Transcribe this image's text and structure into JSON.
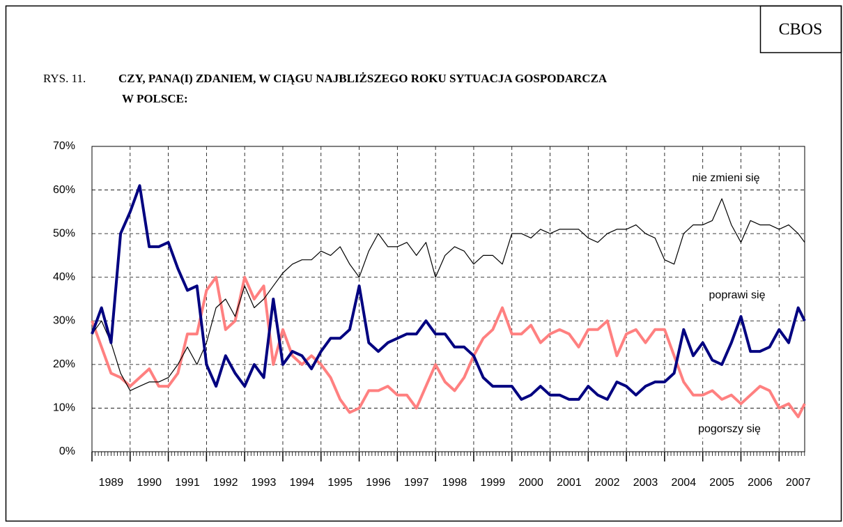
{
  "chart_data": {
    "type": "line",
    "badge": "CBOS",
    "figure_label": "RYS. 11.",
    "title": "CZY, PANA(I) ZDANIEM, W CIĄGU NAJBLIŻSZEGO ROKU SYTUACJA GOSPODARCZA",
    "title_line2": "W POLSCE:",
    "x": [
      1989,
      1989.25,
      1989.5,
      1989.75,
      1990,
      1990.25,
      1990.5,
      1990.75,
      1991,
      1991.25,
      1991.5,
      1991.75,
      1992,
      1992.25,
      1992.5,
      1992.75,
      1993,
      1993.25,
      1993.5,
      1993.75,
      1994,
      1994.25,
      1994.5,
      1994.75,
      1995,
      1995.25,
      1995.5,
      1995.75,
      1996,
      1996.25,
      1996.5,
      1996.75,
      1997,
      1997.25,
      1997.5,
      1997.75,
      1998,
      1998.25,
      1998.5,
      1998.75,
      1999,
      1999.25,
      1999.5,
      1999.75,
      2000,
      2000.25,
      2000.5,
      2000.75,
      2001,
      2001.25,
      2001.5,
      2001.75,
      2002,
      2002.25,
      2002.5,
      2002.75,
      2003,
      2003.25,
      2003.5,
      2003.75,
      2004,
      2004.25,
      2004.5,
      2004.75,
      2005,
      2005.25,
      2005.5,
      2005.75,
      2006,
      2006.25,
      2006.5,
      2006.75,
      2007,
      2007.25,
      2007.5,
      2007.67
    ],
    "series": [
      {
        "name": "nie zmieni się",
        "color": "#000000",
        "values": [
          27,
          30,
          25,
          18,
          14,
          15,
          16,
          16,
          17,
          20,
          24,
          20,
          25,
          33,
          35,
          31,
          38,
          33,
          35,
          38,
          41,
          43,
          44,
          44,
          46,
          45,
          47,
          43,
          40,
          46,
          50,
          47,
          47,
          48,
          45,
          48,
          40,
          45,
          47,
          46,
          43,
          45,
          45,
          43,
          50,
          50,
          49,
          51,
          50,
          51,
          51,
          51,
          49,
          48,
          50,
          51,
          51,
          52,
          50,
          49,
          44,
          43,
          50,
          52,
          52,
          53,
          58,
          52,
          48,
          53,
          52,
          52,
          51,
          52,
          50,
          48
        ]
      },
      {
        "name": "poprawi się",
        "color": "#000080",
        "values": [
          27,
          33,
          25,
          50,
          55,
          61,
          47,
          47,
          48,
          42,
          37,
          38,
          20,
          15,
          22,
          18,
          15,
          20,
          17,
          35,
          20,
          23,
          22,
          19,
          23,
          26,
          26,
          28,
          38,
          25,
          23,
          25,
          26,
          27,
          27,
          30,
          27,
          27,
          24,
          24,
          22,
          17,
          15,
          15,
          15,
          12,
          13,
          15,
          13,
          13,
          12,
          12,
          15,
          13,
          12,
          16,
          15,
          13,
          15,
          16,
          16,
          18,
          28,
          22,
          25,
          21,
          20,
          25,
          31,
          23,
          23,
          24,
          28,
          25,
          33,
          30
        ]
      },
      {
        "name": "pogorszy się",
        "color": "#ff8080",
        "values": [
          30,
          24,
          18,
          17,
          15,
          17,
          19,
          15,
          15,
          18,
          27,
          27,
          37,
          40,
          28,
          30,
          40,
          35,
          38,
          20,
          28,
          22,
          20,
          22,
          20,
          17,
          12,
          9,
          10,
          14,
          14,
          15,
          13,
          13,
          10,
          15,
          20,
          16,
          14,
          17,
          22,
          26,
          28,
          33,
          27,
          27,
          29,
          25,
          27,
          28,
          27,
          24,
          28,
          28,
          30,
          22,
          27,
          28,
          25,
          28,
          28,
          22,
          16,
          13,
          13,
          14,
          12,
          13,
          11,
          13,
          15,
          14,
          10,
          11,
          8,
          11
        ]
      }
    ],
    "xlim": [
      1989,
      2007.67
    ],
    "xticks": [
      1989,
      1990,
      1991,
      1992,
      1993,
      1994,
      1995,
      1996,
      1997,
      1998,
      1999,
      2000,
      2001,
      2002,
      2003,
      2004,
      2005,
      2006,
      2007
    ],
    "ylim": [
      0,
      70
    ],
    "yticks": [
      {
        "value": 0,
        "label": "0%"
      },
      {
        "value": 10,
        "label": "10%"
      },
      {
        "value": 20,
        "label": "20%"
      },
      {
        "value": 30,
        "label": "30%"
      },
      {
        "value": 40,
        "label": "40%"
      },
      {
        "value": 50,
        "label": "50%"
      },
      {
        "value": 60,
        "label": "60%"
      },
      {
        "value": 70,
        "label": "70%"
      }
    ],
    "grid": true
  }
}
